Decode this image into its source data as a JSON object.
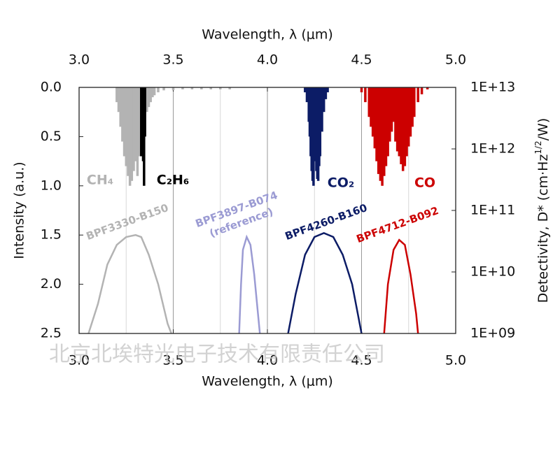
{
  "chart_data": {
    "type": "spectrum",
    "top_xlabel": "Wavelength, λ (μm)",
    "xlabel": "Wavelength, λ (μm)",
    "ylabel": "Intensity (a.u.)",
    "y2label": [
      "Detectivity, D* (cm·Hz",
      "1/2",
      "/W)"
    ],
    "xlim": [
      3.0,
      5.0
    ],
    "xticks": [
      {
        "value": 3,
        "label": "3.0"
      },
      3.5,
      {
        "value": 4,
        "label": "4.0"
      },
      4.5,
      {
        "value": 5,
        "label": "5.0"
      }
    ],
    "x_minor_grid": [
      3.25,
      3.75,
      4.25,
      4.75
    ],
    "ylim": [
      0,
      2.5
    ],
    "y_inverted": true,
    "yticks": [
      {
        "value": 0,
        "label": "0.0"
      },
      0.5,
      {
        "value": 1,
        "label": "1.0"
      },
      1.5,
      {
        "value": 2,
        "label": "2.0"
      },
      2.5
    ],
    "y2lim": [
      1000000000.0,
      10000000000000.0
    ],
    "y2log": true,
    "y2ticks": [
      {
        "value": 10000000000000.0,
        "label": "1E+13"
      },
      {
        "value": 1000000000000.0,
        "label": "1E+12"
      },
      {
        "value": 100000000000.0,
        "label": "1E+11"
      },
      {
        "value": 10000000000.0,
        "label": "1E+10"
      },
      {
        "value": 1000000000.0,
        "label": "1E+09"
      }
    ],
    "watermark": "北京北埃特光电子技术有限责任公司",
    "series": [
      {
        "name": "CH₄",
        "color": "#b3b3b3",
        "style": "stick",
        "x": [
          3.2,
          3.21,
          3.22,
          3.23,
          3.24,
          3.25,
          3.26,
          3.27,
          3.28,
          3.29,
          3.3,
          3.31,
          3.32,
          3.33,
          3.34,
          3.35,
          3.36,
          3.37,
          3.38,
          3.39,
          3.4,
          3.42,
          3.45,
          3.5,
          3.55,
          3.6,
          3.65,
          3.7,
          3.75,
          3.8
        ],
        "values": [
          0.15,
          0.25,
          0.4,
          0.55,
          0.7,
          0.8,
          0.9,
          1.0,
          0.95,
          0.85,
          0.75,
          0.9,
          0.7,
          0.5,
          0.4,
          0.3,
          0.25,
          0.2,
          0.15,
          0.1,
          0.08,
          0.05,
          0.03,
          0.03,
          0.02,
          0.02,
          0.02,
          0.02,
          0.02,
          0.02
        ]
      },
      {
        "name": "C₂H₆",
        "color": "#000000",
        "style": "stick",
        "x": [
          3.33,
          3.335,
          3.34,
          3.345,
          3.35
        ],
        "values": [
          0.7,
          0.6,
          0.75,
          1.0,
          0.5
        ]
      },
      {
        "name": "CO₂",
        "color": "#0c1c66",
        "style": "stick",
        "x": [
          4.2,
          4.21,
          4.22,
          4.225,
          4.23,
          4.235,
          4.24,
          4.245,
          4.25,
          4.255,
          4.26,
          4.265,
          4.27,
          4.275,
          4.28,
          4.29,
          4.3,
          4.31,
          4.32
        ],
        "values": [
          0.05,
          0.15,
          0.35,
          0.5,
          0.7,
          0.85,
          0.95,
          1.0,
          0.6,
          0.75,
          0.85,
          0.93,
          0.95,
          0.8,
          0.7,
          0.45,
          0.25,
          0.12,
          0.05
        ]
      },
      {
        "name": "CO",
        "color": "#cc0000",
        "style": "stick",
        "x": [
          4.5,
          4.52,
          4.54,
          4.55,
          4.56,
          4.57,
          4.58,
          4.59,
          4.6,
          4.61,
          4.62,
          4.63,
          4.64,
          4.65,
          4.66,
          4.67,
          4.68,
          4.69,
          4.7,
          4.71,
          4.72,
          4.73,
          4.74,
          4.75,
          4.76,
          4.77,
          4.78,
          4.8,
          4.82,
          4.85
        ],
        "values": [
          0.05,
          0.15,
          0.3,
          0.4,
          0.5,
          0.62,
          0.75,
          0.88,
          0.95,
          1.0,
          0.9,
          0.8,
          0.7,
          0.55,
          0.45,
          0.35,
          0.55,
          0.65,
          0.7,
          0.78,
          0.85,
          0.8,
          0.7,
          0.6,
          0.5,
          0.4,
          0.3,
          0.15,
          0.07,
          0.02
        ]
      },
      {
        "name": "BPF3330-B150",
        "color": "#b3b3b3",
        "style": "line",
        "x": [
          3.05,
          3.1,
          3.15,
          3.2,
          3.25,
          3.3,
          3.33,
          3.37,
          3.42,
          3.47,
          3.49
        ],
        "values": [
          2.5,
          2.2,
          1.8,
          1.6,
          1.52,
          1.5,
          1.52,
          1.7,
          2.0,
          2.4,
          2.5
        ]
      },
      {
        "name": "BPF3897-B074",
        "annotation": "(reference)",
        "color": "#9b9bd3",
        "style": "line",
        "x": [
          3.85,
          3.86,
          3.87,
          3.89,
          3.91,
          3.93,
          3.95,
          3.96
        ],
        "values": [
          2.5,
          2.0,
          1.65,
          1.52,
          1.6,
          1.9,
          2.3,
          2.5
        ]
      },
      {
        "name": "BPF4260-B160",
        "color": "#0c1c66",
        "style": "line",
        "x": [
          4.11,
          4.15,
          4.2,
          4.25,
          4.3,
          4.35,
          4.4,
          4.45,
          4.5
        ],
        "values": [
          2.5,
          2.1,
          1.7,
          1.52,
          1.48,
          1.52,
          1.7,
          2.0,
          2.5
        ]
      },
      {
        "name": "BPF4712-B092",
        "color": "#cc0000",
        "style": "line",
        "x": [
          4.62,
          4.64,
          4.67,
          4.7,
          4.73,
          4.76,
          4.79,
          4.8
        ],
        "values": [
          2.5,
          2.0,
          1.65,
          1.55,
          1.6,
          1.9,
          2.3,
          2.5
        ]
      }
    ]
  }
}
